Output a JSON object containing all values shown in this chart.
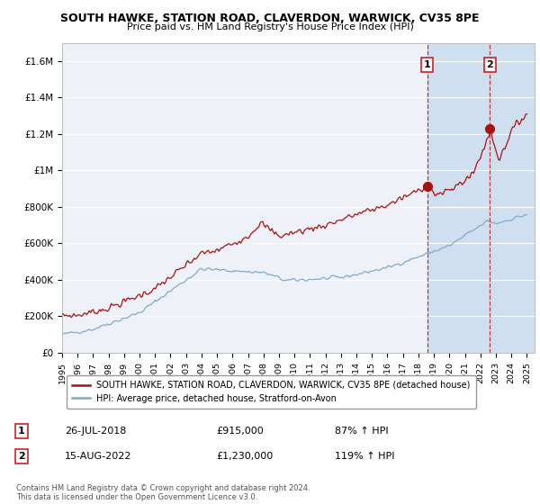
{
  "title": "SOUTH HAWKE, STATION ROAD, CLAVERDON, WARWICK, CV35 8PE",
  "subtitle": "Price paid vs. HM Land Registry's House Price Index (HPI)",
  "xlim": [
    1995.0,
    2025.5
  ],
  "ylim": [
    0,
    1700000
  ],
  "yticks": [
    0,
    200000,
    400000,
    600000,
    800000,
    1000000,
    1200000,
    1400000,
    1600000
  ],
  "ytick_labels": [
    "£0",
    "£200K",
    "£400K",
    "£600K",
    "£800K",
    "£1M",
    "£1.2M",
    "£1.4M",
    "£1.6M"
  ],
  "hpi_color": "#7faacc",
  "price_color": "#aa1111",
  "marker1_x": 2018.57,
  "marker1_y": 915000,
  "marker2_x": 2022.62,
  "marker2_y": 1230000,
  "legend_label1": "SOUTH HAWKE, STATION ROAD, CLAVERDON, WARWICK, CV35 8PE (detached house)",
  "legend_label2": "HPI: Average price, detached house, Stratford-on-Avon",
  "annotation1_date": "26-JUL-2018",
  "annotation1_price": "£915,000",
  "annotation1_hpi": "87% ↑ HPI",
  "annotation2_date": "15-AUG-2022",
  "annotation2_price": "£1,230,000",
  "annotation2_hpi": "119% ↑ HPI",
  "footer": "Contains HM Land Registry data © Crown copyright and database right 2024.\nThis data is licensed under the Open Government Licence v3.0.",
  "bg_color": "#ffffff",
  "plot_bg_color": "#eef2f8",
  "shade_color": "#d0dff0",
  "grid_color": "#ffffff",
  "vline1_x": 2018.57,
  "vline2_x": 2022.62
}
